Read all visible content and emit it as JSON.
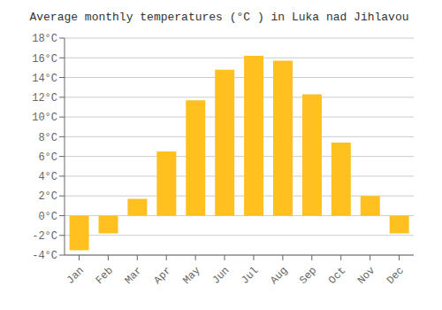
{
  "chart_data": {
    "type": "bar",
    "title": "Average monthly temperatures (°C ) in Luka nad Jihlavou",
    "categories": [
      "Jan",
      "Feb",
      "Mar",
      "Apr",
      "May",
      "Jun",
      "Jul",
      "Aug",
      "Sep",
      "Oct",
      "Nov",
      "Dec"
    ],
    "values": [
      -3.5,
      -1.8,
      1.7,
      6.5,
      11.7,
      14.8,
      16.2,
      15.7,
      12.3,
      7.4,
      2.0,
      -1.8
    ],
    "color": "#FFC020",
    "ylim": [
      -4,
      18
    ],
    "yticks": [
      {
        "value": -4,
        "label": "-4°C"
      },
      {
        "value": -2,
        "label": "-2°C"
      },
      {
        "value": 0,
        "label": "0°C"
      },
      {
        "value": 2,
        "label": "2°C"
      },
      {
        "value": 4,
        "label": "4°C"
      },
      {
        "value": 6,
        "label": "6°C"
      },
      {
        "value": 8,
        "label": "8°C"
      },
      {
        "value": 10,
        "label": "10°C"
      },
      {
        "value": 12,
        "label": "12°C"
      },
      {
        "value": 14,
        "label": "14°C"
      },
      {
        "value": 16,
        "label": "16°C"
      },
      {
        "value": 18,
        "label": "18°C"
      }
    ],
    "grid": true
  }
}
